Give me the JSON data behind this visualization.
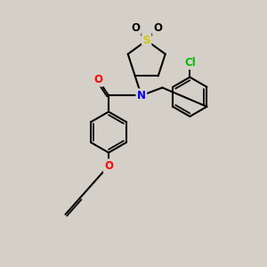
{
  "bg_color": "#d4d0c8",
  "bond_color": "#000000",
  "bw": 1.5,
  "atom_colors": {
    "S": "#cccc00",
    "O": "#ff0000",
    "N": "#0000ff",
    "Cl": "#00bb00"
  },
  "fs": 8.5,
  "figsize": [
    3.0,
    3.0
  ],
  "dpi": 100
}
